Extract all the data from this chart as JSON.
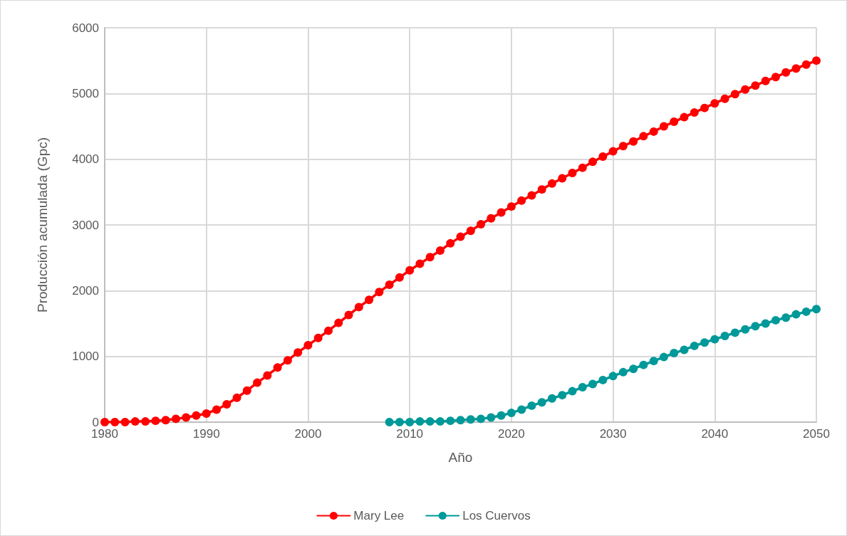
{
  "chart_data": {
    "type": "line",
    "xlabel": "Año",
    "ylabel": "Producción acumulada (Gpc)",
    "xlim": [
      1980,
      2050
    ],
    "xticks": [
      1980,
      1990,
      2000,
      2010,
      2020,
      2030,
      2040,
      2050
    ],
    "ylim": [
      0,
      6000
    ],
    "yticks": [
      0,
      1000,
      2000,
      3000,
      4000,
      5000,
      6000
    ],
    "grid": true,
    "legend": "bottom",
    "marker": "circle",
    "line_style": "solid",
    "series": [
      {
        "name": "Mary Lee",
        "color": "#ff0000",
        "x": [
          1980,
          1981,
          1982,
          1983,
          1984,
          1985,
          1986,
          1987,
          1988,
          1989,
          1990,
          1991,
          1992,
          1993,
          1994,
          1995,
          1996,
          1997,
          1998,
          1999,
          2000,
          2001,
          2002,
          2003,
          2004,
          2005,
          2006,
          2007,
          2008,
          2009,
          2010,
          2011,
          2012,
          2013,
          2014,
          2015,
          2016,
          2017,
          2018,
          2019,
          2020,
          2021,
          2022,
          2023,
          2024,
          2025,
          2026,
          2027,
          2028,
          2029,
          2030,
          2031,
          2032,
          2033,
          2034,
          2035,
          2036,
          2037,
          2038,
          2039,
          2040,
          2041,
          2042,
          2043,
          2044,
          2045,
          2046,
          2047,
          2048,
          2049,
          2050
        ],
        "values": [
          0,
          0,
          0,
          10,
          10,
          20,
          30,
          50,
          70,
          100,
          130,
          190,
          270,
          370,
          480,
          600,
          710,
          830,
          940,
          1060,
          1170,
          1280,
          1390,
          1510,
          1630,
          1750,
          1860,
          1980,
          2090,
          2200,
          2310,
          2410,
          2510,
          2610,
          2720,
          2820,
          2910,
          3010,
          3100,
          3190,
          3280,
          3370,
          3450,
          3540,
          3630,
          3710,
          3790,
          3870,
          3960,
          4040,
          4120,
          4200,
          4270,
          4350,
          4420,
          4500,
          4570,
          4640,
          4710,
          4780,
          4850,
          4920,
          4990,
          5060,
          5120,
          5190,
          5250,
          5320,
          5380,
          5440,
          5500
        ]
      },
      {
        "name": "Los Cuervos",
        "color": "#009999",
        "x": [
          2008,
          2009,
          2010,
          2011,
          2012,
          2013,
          2014,
          2015,
          2016,
          2017,
          2018,
          2019,
          2020,
          2021,
          2022,
          2023,
          2024,
          2025,
          2026,
          2027,
          2028,
          2029,
          2030,
          2031,
          2032,
          2033,
          2034,
          2035,
          2036,
          2037,
          2038,
          2039,
          2040,
          2041,
          2042,
          2043,
          2044,
          2045,
          2046,
          2047,
          2048,
          2049,
          2050
        ],
        "values": [
          0,
          0,
          0,
          10,
          10,
          10,
          20,
          30,
          40,
          50,
          70,
          100,
          140,
          190,
          250,
          300,
          360,
          410,
          470,
          530,
          580,
          640,
          700,
          760,
          810,
          870,
          930,
          990,
          1050,
          1100,
          1160,
          1210,
          1260,
          1310,
          1360,
          1410,
          1460,
          1500,
          1550,
          1590,
          1640,
          1680,
          1720
        ]
      }
    ]
  }
}
